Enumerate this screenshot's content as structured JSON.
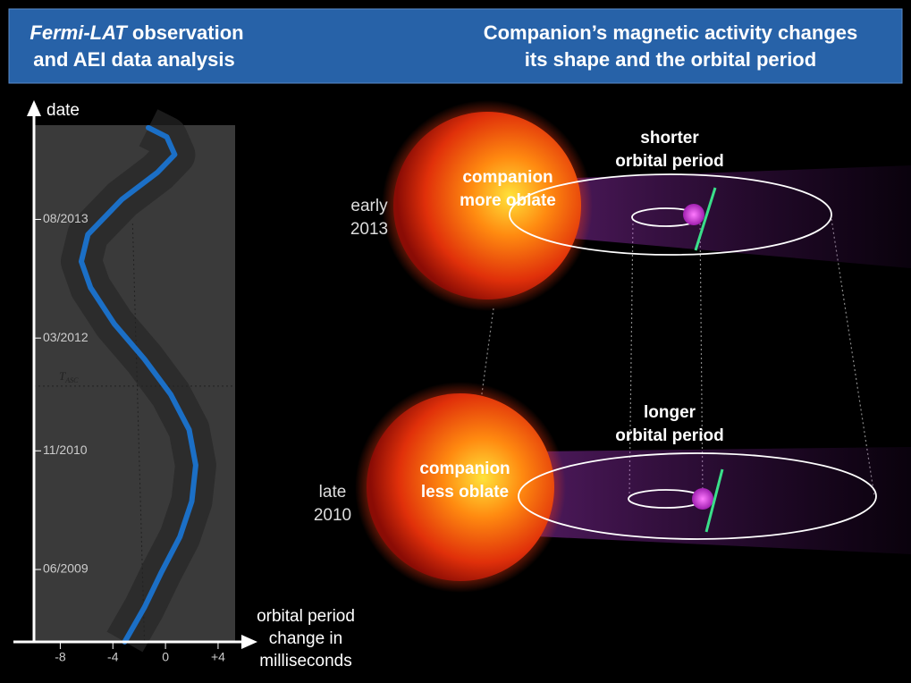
{
  "header": {
    "left": {
      "italic": "Fermi-LAT",
      "rest": " observation",
      "line2": "and AEI data analysis"
    },
    "right": [
      "Companion’s magnetic activity changes",
      "its shape and the orbital period"
    ]
  },
  "chart_data": {
    "type": "line",
    "y_label": "date",
    "x_label": [
      "orbital period",
      "change in",
      "milliseconds"
    ],
    "annotation": {
      "main": "T",
      "sub": "ASC",
      "y": 2011.6
    },
    "xlim": [
      -10,
      5.5
    ],
    "xticks": [
      -8,
      -4,
      0,
      {
        "value": 4,
        "label": "+4"
      }
    ],
    "ylim": [
      2008.56,
      2014.7
    ],
    "yticks": [
      {
        "value": 2009.42,
        "label": "06/2009"
      },
      {
        "value": 2010.83,
        "label": "11/2010"
      },
      {
        "value": 2012.17,
        "label": "03/2012"
      },
      {
        "value": 2013.58,
        "label": "08/2013"
      }
    ],
    "y": [
      2008.56,
      2008.97,
      2009.39,
      2009.81,
      2010.23,
      2010.66,
      2011.08,
      2011.5,
      2011.92,
      2012.34,
      2012.77,
      2013.08,
      2013.4,
      2013.82,
      2014.14,
      2014.35,
      2014.56,
      2014.67
    ],
    "series": [
      {
        "color": "#1b6fc6",
        "values": [
          -3.1,
          -1.6,
          -0.3,
          1.1,
          2.0,
          2.3,
          1.8,
          0.4,
          -1.6,
          -3.9,
          -5.7,
          -6.4,
          -5.9,
          -3.3,
          -0.6,
          0.7,
          0.1,
          -1.3
        ]
      }
    ]
  },
  "illustration": {
    "top": {
      "era": [
        "early",
        "2013"
      ],
      "companion": [
        "companion",
        "more oblate"
      ],
      "period": [
        "shorter",
        "orbital period"
      ]
    },
    "bottom": {
      "era": [
        "late",
        "2010"
      ],
      "companion": [
        "companion",
        "less oblate"
      ],
      "period": [
        "longer",
        "orbital period"
      ]
    }
  }
}
